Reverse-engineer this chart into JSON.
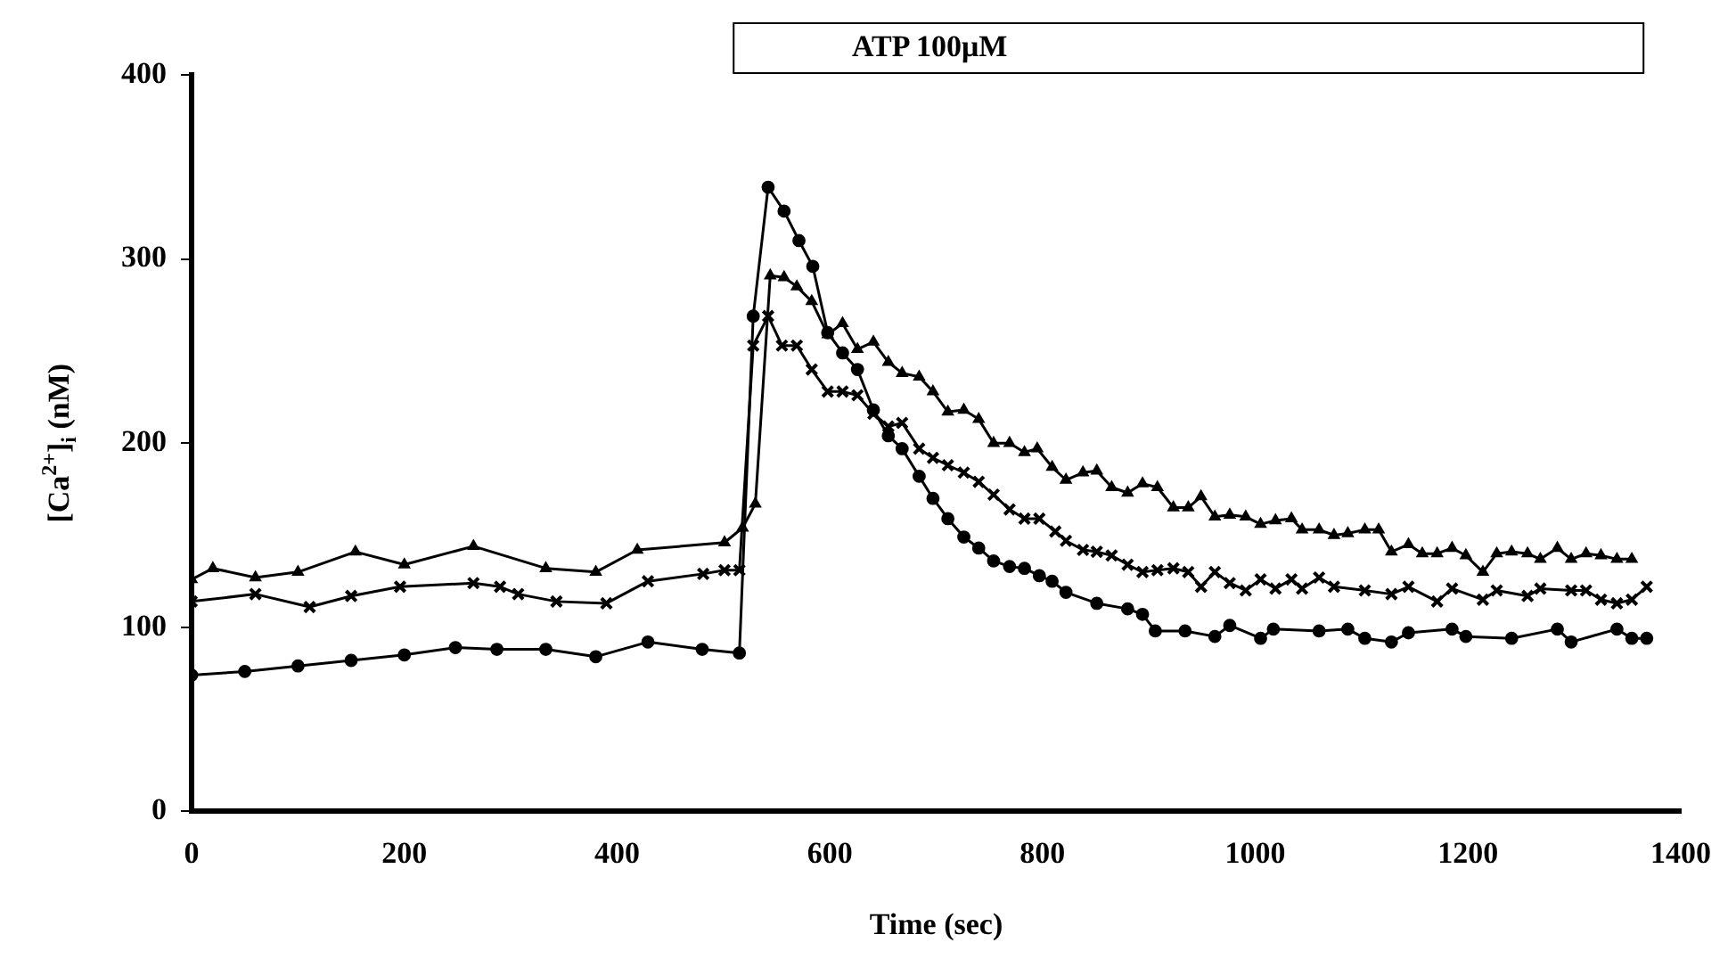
{
  "chart_data": {
    "type": "line",
    "xlabel": "Time (sec)",
    "ylabel": "[Ca$^{2+}$]$_{i}$ (nM)",
    "xlim": [
      0,
      1400
    ],
    "xticks": [
      0,
      200,
      400,
      600,
      800,
      1000,
      1200,
      1400
    ],
    "ylim": [
      0,
      400
    ],
    "yticks": [
      0,
      100,
      200,
      300,
      400
    ],
    "grid": false,
    "legend": false,
    "annotations": [
      "ATP 100μM"
    ],
    "series": [
      {
        "color": "#000000",
        "marker": "circle",
        "x": [
          0,
          50,
          100,
          150,
          200,
          248,
          287,
          333,
          380,
          429,
          480,
          515,
          528,
          542,
          557,
          571,
          584,
          598,
          612,
          626,
          641,
          655,
          668,
          684,
          697,
          711,
          726,
          740,
          754,
          769,
          783,
          797,
          809,
          822,
          851,
          880,
          894,
          906,
          934,
          962,
          976,
          1005,
          1017,
          1060,
          1087,
          1103,
          1128,
          1144,
          1185,
          1198,
          1241,
          1284,
          1297,
          1340,
          1354,
          1368
        ],
        "values": [
          74,
          76,
          79,
          82,
          85,
          89,
          88,
          88,
          84,
          92,
          88,
          86,
          269,
          339,
          326,
          310,
          296,
          260,
          249,
          240,
          218,
          204,
          197,
          182,
          170,
          159,
          149,
          143,
          136,
          133,
          132,
          128,
          125,
          119,
          113,
          110,
          107,
          98,
          98,
          95,
          101,
          94,
          99,
          98,
          99,
          94,
          92,
          97,
          99,
          95,
          94,
          99,
          92,
          99,
          94,
          94
        ]
      },
      {
        "color": "#000000",
        "marker": "triangle",
        "x": [
          0,
          20,
          60,
          100,
          154,
          200,
          265,
          333,
          380,
          419,
          501,
          518,
          530,
          544,
          557,
          569,
          583,
          598,
          612,
          626,
          641,
          655,
          668,
          684,
          697,
          711,
          726,
          740,
          754,
          769,
          783,
          795,
          809,
          822,
          838,
          851,
          865,
          880,
          894,
          908,
          923,
          937,
          949,
          962,
          976,
          991,
          1005,
          1019,
          1034,
          1044,
          1060,
          1074,
          1087,
          1103,
          1116,
          1128,
          1144,
          1157,
          1171,
          1185,
          1198,
          1214,
          1227,
          1241,
          1256,
          1268,
          1284,
          1297,
          1311,
          1325,
          1340,
          1354
        ],
        "values": [
          126,
          132,
          127,
          130,
          141,
          134,
          144,
          132,
          130,
          142,
          146,
          154,
          167,
          291,
          290,
          285,
          277,
          259,
          265,
          251,
          255,
          244,
          238,
          236,
          228,
          217,
          218,
          213,
          200,
          200,
          195,
          197,
          187,
          180,
          184,
          185,
          176,
          173,
          178,
          176,
          165,
          165,
          171,
          160,
          161,
          160,
          156,
          158,
          159,
          153,
          153,
          150,
          151,
          153,
          153,
          141,
          145,
          140,
          140,
          143,
          139,
          130,
          140,
          141,
          140,
          137,
          143,
          137,
          140,
          139,
          137,
          137
        ]
      },
      {
        "color": "#000000",
        "marker": "cross",
        "x": [
          0,
          60,
          111,
          150,
          196,
          265,
          290,
          307,
          343,
          390,
          429,
          481,
          501,
          515,
          528,
          542,
          555,
          569,
          583,
          598,
          612,
          626,
          641,
          655,
          668,
          684,
          697,
          711,
          726,
          740,
          754,
          769,
          783,
          797,
          812,
          822,
          838,
          851,
          865,
          880,
          894,
          908,
          923,
          937,
          949,
          962,
          976,
          991,
          1005,
          1019,
          1034,
          1044,
          1060,
          1074,
          1103,
          1128,
          1144,
          1171,
          1185,
          1214,
          1227,
          1256,
          1268,
          1297,
          1311,
          1325,
          1340,
          1354,
          1368
        ],
        "values": [
          114,
          118,
          111,
          117,
          122,
          124,
          122,
          118,
          114,
          113,
          125,
          129,
          131,
          131,
          253,
          269,
          253,
          253,
          240,
          228,
          228,
          226,
          216,
          209,
          211,
          197,
          192,
          188,
          184,
          179,
          172,
          164,
          159,
          159,
          152,
          147,
          142,
          141,
          139,
          134,
          130,
          131,
          132,
          130,
          122,
          130,
          124,
          120,
          126,
          121,
          126,
          121,
          127,
          122,
          120,
          118,
          122,
          114,
          121,
          115,
          120,
          117,
          121,
          120,
          120,
          115,
          113,
          115,
          122
        ]
      }
    ]
  }
}
